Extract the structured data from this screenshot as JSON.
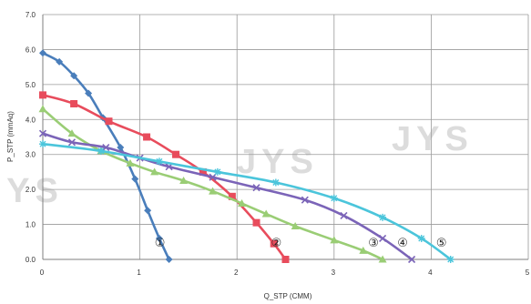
{
  "chart_data": {
    "type": "line",
    "title": "",
    "xlabel": "Q_STP (CMM)",
    "ylabel": "P_STP (mmAq)",
    "xlim": [
      0,
      5
    ],
    "ylim": [
      0,
      7
    ],
    "x_ticks": [
      "0",
      "1",
      "2",
      "3",
      "4",
      "5"
    ],
    "y_ticks": [
      "0.0",
      "1.0",
      "2.0",
      "3.0",
      "4.0",
      "5.0",
      "6.0",
      "7.0"
    ],
    "grid": true,
    "watermark": "JYS",
    "series": [
      {
        "name": "①",
        "color": "#4a7ebb",
        "marker": "diamond",
        "points": [
          [
            0,
            5.9
          ],
          [
            0.17,
            5.65
          ],
          [
            0.32,
            5.25
          ],
          [
            0.47,
            4.75
          ],
          [
            0.62,
            4.05
          ],
          [
            0.8,
            3.2
          ],
          [
            0.95,
            2.3
          ],
          [
            1.08,
            1.4
          ],
          [
            1.2,
            0.6
          ],
          [
            1.3,
            0.0
          ]
        ]
      },
      {
        "name": "②",
        "color": "#e84c5c",
        "marker": "square",
        "points": [
          [
            0,
            4.7
          ],
          [
            0.32,
            4.45
          ],
          [
            0.68,
            3.95
          ],
          [
            1.07,
            3.5
          ],
          [
            1.37,
            3.0
          ],
          [
            1.65,
            2.5
          ],
          [
            1.95,
            1.8
          ],
          [
            2.2,
            1.05
          ],
          [
            2.38,
            0.45
          ],
          [
            2.5,
            0.0
          ]
        ]
      },
      {
        "name": "③",
        "color": "#9acd75",
        "marker": "triangle",
        "points": [
          [
            0,
            4.3
          ],
          [
            0.3,
            3.6
          ],
          [
            0.6,
            3.1
          ],
          [
            0.9,
            2.75
          ],
          [
            1.15,
            2.5
          ],
          [
            1.45,
            2.25
          ],
          [
            1.75,
            1.95
          ],
          [
            2.05,
            1.6
          ],
          [
            2.3,
            1.3
          ],
          [
            2.6,
            0.95
          ],
          [
            3.0,
            0.55
          ],
          [
            3.3,
            0.25
          ],
          [
            3.5,
            0.0
          ]
        ]
      },
      {
        "name": "④",
        "color": "#7b64b8",
        "marker": "x",
        "points": [
          [
            0,
            3.6
          ],
          [
            0.3,
            3.35
          ],
          [
            0.65,
            3.2
          ],
          [
            1.0,
            2.9
          ],
          [
            1.3,
            2.65
          ],
          [
            1.75,
            2.35
          ],
          [
            2.2,
            2.05
          ],
          [
            2.7,
            1.7
          ],
          [
            3.1,
            1.25
          ],
          [
            3.5,
            0.6
          ],
          [
            3.8,
            0.0
          ]
        ]
      },
      {
        "name": "⑤",
        "color": "#4bc5db",
        "marker": "star",
        "points": [
          [
            0,
            3.3
          ],
          [
            0.6,
            3.1
          ],
          [
            1.2,
            2.8
          ],
          [
            1.8,
            2.5
          ],
          [
            2.4,
            2.2
          ],
          [
            3.0,
            1.75
          ],
          [
            3.5,
            1.2
          ],
          [
            3.9,
            0.6
          ],
          [
            4.2,
            0.0
          ]
        ]
      }
    ]
  }
}
